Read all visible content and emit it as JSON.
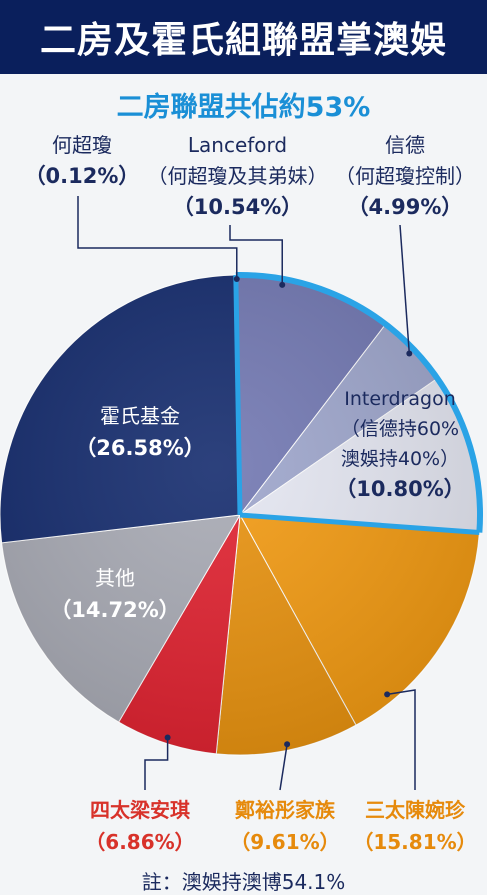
{
  "header": {
    "title": "二房及霍氏組聯盟掌澳娛",
    "subtitle": "二房聯盟共佔約53%"
  },
  "colors": {
    "header_bg": "#0a1f5c",
    "subtitle": "#1a8fd6",
    "highlight_ring": "#2aa3e6"
  },
  "chart_data": {
    "type": "pie",
    "title": "二房及霍氏組聯盟掌澳娛",
    "subtitle": "二房聯盟共佔約53%",
    "slices": [
      {
        "id": "hochiu",
        "name": "何超瓊",
        "pct_label": "（0.12%）",
        "value": 0.12,
        "color": "#1b2f72"
      },
      {
        "id": "lanceford",
        "name": "Lanceford",
        "sub": "（何超瓊及其弟妹）",
        "pct_label": "（10.54%）",
        "value": 10.54,
        "color": "#7278b2"
      },
      {
        "id": "shuntak",
        "name": "信德",
        "sub": "（何超瓊控制）",
        "pct_label": "（4.99%）",
        "value": 4.99,
        "color": "#9ea6cc"
      },
      {
        "id": "interdragon",
        "name": "Interdragon",
        "sub1": "（信德持60%",
        "sub2": "澳娛持40%）",
        "pct_label": "（10.80%）",
        "value": 10.8,
        "color": "#e5e7f2"
      },
      {
        "id": "ina",
        "name": "三太陳婉珍",
        "pct_label": "（15.81%）",
        "value": 15.81,
        "color": "#f29a12"
      },
      {
        "id": "cheng",
        "name": "鄭裕彤家族",
        "pct_label": "（9.61%）",
        "value": 9.61,
        "color": "#e8920f"
      },
      {
        "id": "lucina",
        "name": "四太梁安琪",
        "pct_label": "（6.86%）",
        "value": 6.86,
        "color": "#e02230"
      },
      {
        "id": "others",
        "name": "其他",
        "pct_label": "（14.72%）",
        "value": 14.72,
        "color": "#a8aab4"
      },
      {
        "id": "fok",
        "name": "霍氏基金",
        "pct_label": "（26.58%）",
        "value": 26.58,
        "color": "#152c6e"
      }
    ],
    "legend": "none"
  },
  "footer": {
    "note": "註：澳娛持澳博54.1%"
  }
}
